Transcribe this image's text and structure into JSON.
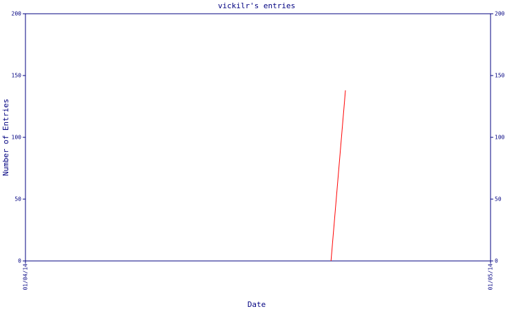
{
  "chart_data": {
    "type": "line",
    "title": "vickilr's entries",
    "x_label": "Date",
    "y_label": "Number of Entries",
    "x": [
      0.657,
      0.688
    ],
    "series": [
      {
        "color": "#ff0000",
        "values": [
          0,
          138
        ]
      }
    ],
    "xlim": [
      0,
      1
    ],
    "xticks": [
      {
        "value": 0,
        "label": "01/04/14"
      },
      {
        "value": 1,
        "label": "01/05/14"
      }
    ],
    "ylim": [
      0,
      200
    ],
    "yticks": [
      0,
      50,
      100,
      150,
      200
    ],
    "y2lim": [
      0,
      200
    ],
    "y2ticks": [
      0,
      50,
      100,
      150,
      200
    ],
    "axis_color": "#000080"
  }
}
